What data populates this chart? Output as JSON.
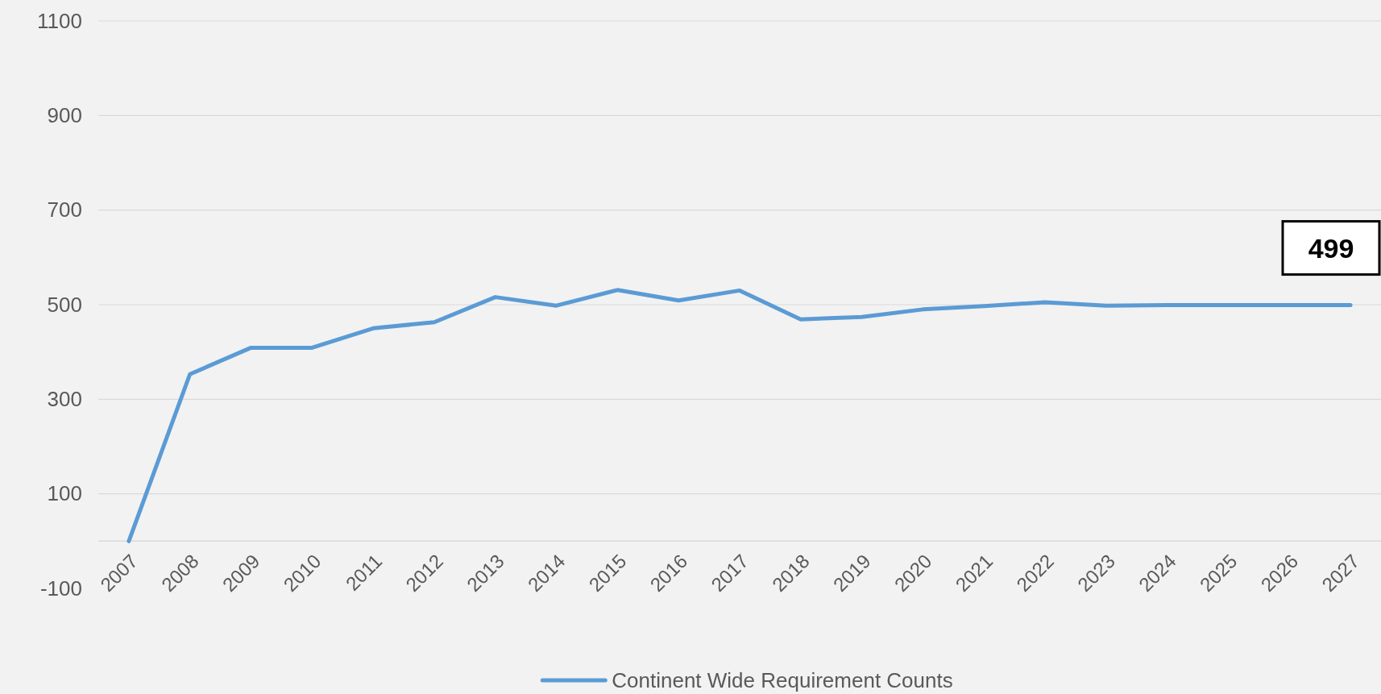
{
  "chart_data": {
    "type": "line",
    "categories": [
      "2007",
      "2008",
      "2009",
      "2010",
      "2011",
      "2012",
      "2013",
      "2014",
      "2015",
      "2016",
      "2017",
      "2018",
      "2019",
      "2020",
      "2021",
      "2022",
      "2023",
      "2024",
      "2025",
      "2026",
      "2027"
    ],
    "series": [
      {
        "name": "Continent Wide Requirement Counts",
        "color": "#5b9bd5",
        "values": [
          0,
          353,
          409,
          409,
          450,
          463,
          516,
          498,
          531,
          509,
          530,
          469,
          474,
          490,
          497,
          505,
          498,
          499,
          499,
          499,
          499
        ],
        "value_labels": [
          null,
          null,
          null,
          null,
          null,
          null,
          null,
          null,
          null,
          null,
          null,
          null,
          null,
          null,
          null,
          null,
          null,
          null,
          null,
          null,
          "499"
        ]
      }
    ],
    "ylim": [
      -100,
      1100
    ],
    "yticks": [
      -100,
      100,
      300,
      500,
      700,
      900,
      1100
    ],
    "grid": "y",
    "legend": "bottom",
    "marker": "none",
    "line_style": "solid"
  }
}
